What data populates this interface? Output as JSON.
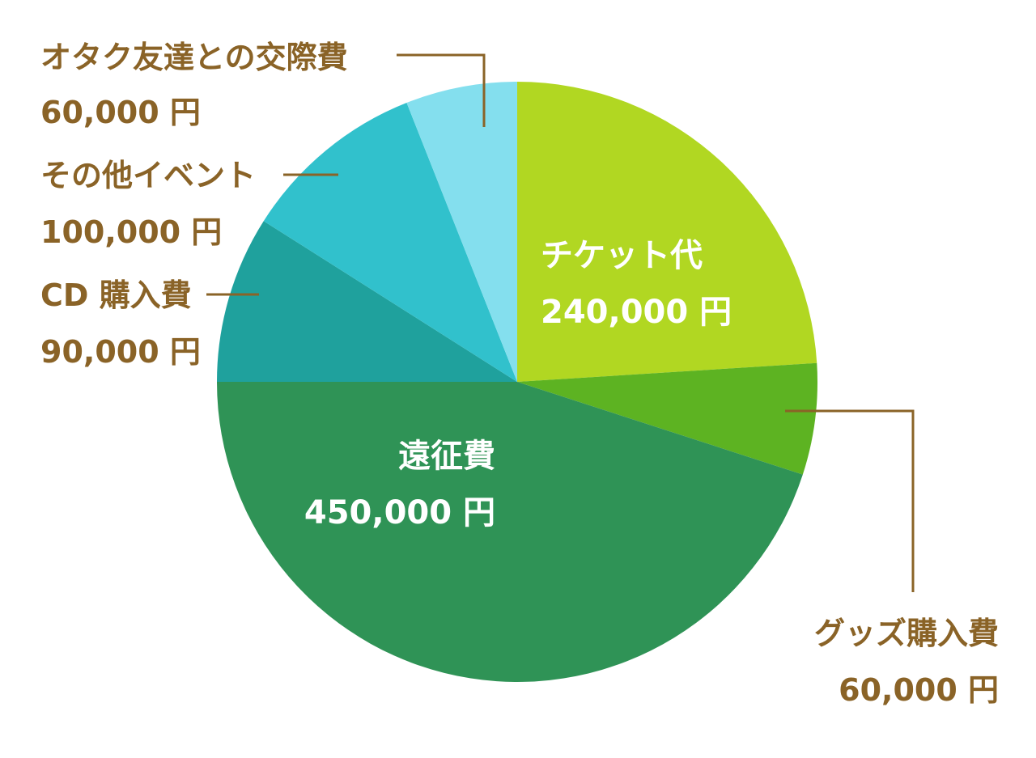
{
  "chart_data": {
    "type": "pie",
    "unit": "円",
    "slices": [
      {
        "label": "チケット代",
        "value": 240000,
        "value_text": "240,000 円",
        "color": "#b1d722"
      },
      {
        "label": "グッズ購入費",
        "value": 60000,
        "value_text": "60,000 円",
        "color": "#5db322"
      },
      {
        "label": "遠征費",
        "value": 450000,
        "value_text": "450,000 円",
        "color": "#2f9356"
      },
      {
        "label": "CD 購入費",
        "value": 90000,
        "value_text": "90,000 円",
        "color": "#1fa19d"
      },
      {
        "label": "その他イベント",
        "value": 100000,
        "value_text": "100,000 円",
        "color": "#31c1cc"
      },
      {
        "label": "オタク友達との交際費",
        "value": 60000,
        "value_text": "60,000 円",
        "color": "#84dfee"
      }
    ],
    "label_color": "#8a6327",
    "inner_label_color": "#ffffff"
  }
}
